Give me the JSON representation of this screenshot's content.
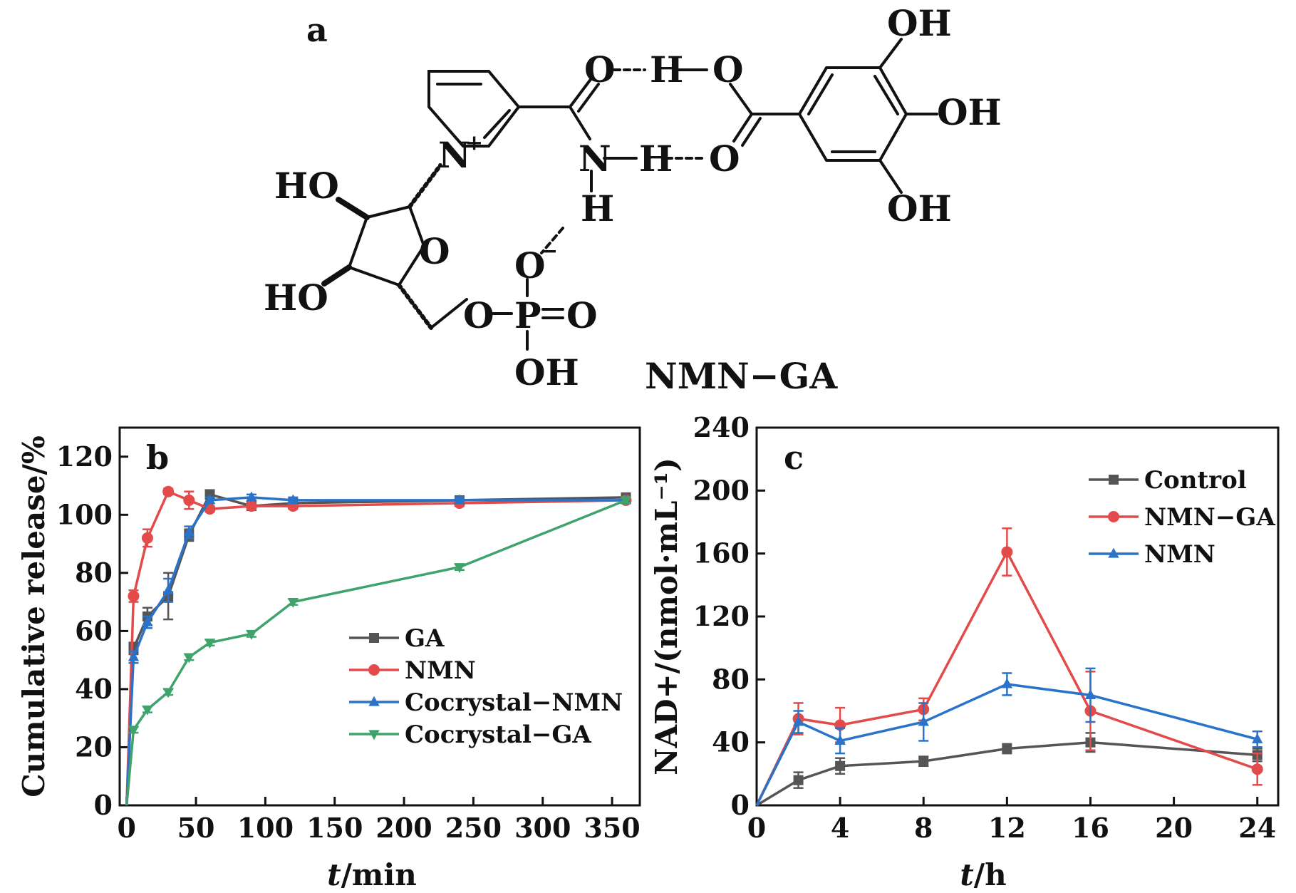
{
  "figure": {
    "compound_name": "NMN−GA",
    "panel_a": {
      "label": "a",
      "atoms": {
        "oh_top": "OH",
        "oh_mid": "OH",
        "oh_bot": "OH",
        "o_carbonyl": "O",
        "h_bridge": "H",
        "o_acid": "O",
        "n_amide": "N",
        "h_bridge2": "H",
        "o_acid2": "O",
        "n_plus": "N",
        "plus": "+",
        "h_amide": "H",
        "o_minus": "O",
        "minus": "−",
        "ho_top": "HO",
        "ho_bot": "HO",
        "o_ring": "O",
        "o_ester": "O",
        "p": "P",
        "o_double": "O",
        "oh_p": "OH"
      }
    }
  },
  "chart_data": [
    {
      "panel": "b",
      "type": "line",
      "xlabel_italic": "t",
      "xlabel_rest": "/min",
      "ylabel": "Cumulative release/%",
      "xlim": [
        -5,
        370
      ],
      "ylim": [
        0,
        130
      ],
      "x_ticks": [
        0,
        50,
        100,
        150,
        200,
        250,
        300,
        350
      ],
      "y_ticks": [
        0,
        20,
        40,
        60,
        80,
        100,
        120
      ],
      "legend_position": "center-right",
      "series": [
        {
          "name": "GA",
          "color": "#555555",
          "marker": "square",
          "x": [
            0,
            5,
            15,
            30,
            45,
            60,
            90,
            120,
            240,
            360
          ],
          "y": [
            0,
            54,
            65,
            72,
            93,
            107,
            103,
            104,
            105,
            106
          ],
          "err": [
            0,
            2,
            3,
            8,
            2,
            1.5,
            1,
            1,
            1,
            1
          ]
        },
        {
          "name": "NMN",
          "color": "#e34a4a",
          "marker": "circle",
          "x": [
            0,
            5,
            15,
            30,
            45,
            60,
            90,
            120,
            240,
            360
          ],
          "y": [
            0,
            72,
            92,
            108,
            105,
            102,
            103,
            103,
            104,
            105
          ],
          "err": [
            0,
            2,
            3,
            1,
            3,
            1,
            1,
            1,
            1,
            1
          ]
        },
        {
          "name": "Cocrystal−NMN",
          "color": "#2a73c9",
          "marker": "triangle-up",
          "x": [
            0,
            5,
            15,
            30,
            45,
            60,
            90,
            120,
            240,
            360
          ],
          "y": [
            0,
            51,
            63,
            74,
            94,
            105,
            106,
            105,
            105,
            105
          ],
          "err": [
            0,
            2,
            2,
            4,
            2,
            1,
            1,
            1,
            1,
            1
          ]
        },
        {
          "name": "Cocrystal−GA",
          "color": "#3fa36b",
          "marker": "triangle-down",
          "x": [
            0,
            5,
            15,
            30,
            45,
            60,
            90,
            120,
            240,
            360
          ],
          "y": [
            0,
            26,
            33,
            39,
            51,
            56,
            59,
            70,
            82,
            105
          ],
          "err": [
            0,
            1,
            1,
            1,
            1,
            1,
            1,
            1,
            1,
            1
          ]
        }
      ]
    },
    {
      "panel": "c",
      "type": "line",
      "xlabel_italic": "t",
      "xlabel_rest": "/h",
      "ylabel": "NAD+/(nmol·mL⁻¹)",
      "xlim": [
        0,
        25
      ],
      "ylim": [
        0,
        240
      ],
      "x_ticks": [
        0,
        4,
        8,
        12,
        16,
        20,
        24
      ],
      "y_ticks": [
        0,
        40,
        80,
        120,
        160,
        200,
        240
      ],
      "legend_position": "top-right",
      "series": [
        {
          "name": "Control",
          "color": "#555555",
          "marker": "square",
          "x": [
            0,
            2,
            4,
            8,
            12,
            16,
            24
          ],
          "y": [
            0,
            16,
            25,
            28,
            36,
            40,
            32
          ],
          "err": [
            0,
            5,
            5,
            3,
            3,
            6,
            4
          ]
        },
        {
          "name": "NMN−GA",
          "color": "#e34a4a",
          "marker": "circle",
          "x": [
            0,
            2,
            4,
            8,
            12,
            16,
            24
          ],
          "y": [
            0,
            55,
            51,
            61,
            161,
            60,
            23
          ],
          "err": [
            0,
            10,
            11,
            7,
            15,
            25,
            10
          ]
        },
        {
          "name": "NMN",
          "color": "#2a73c9",
          "marker": "triangle-up",
          "x": [
            0,
            2,
            4,
            8,
            12,
            16,
            24
          ],
          "y": [
            0,
            53,
            41,
            53,
            77,
            70,
            42
          ],
          "err": [
            0,
            7,
            8,
            12,
            7,
            17,
            5
          ]
        }
      ]
    }
  ]
}
